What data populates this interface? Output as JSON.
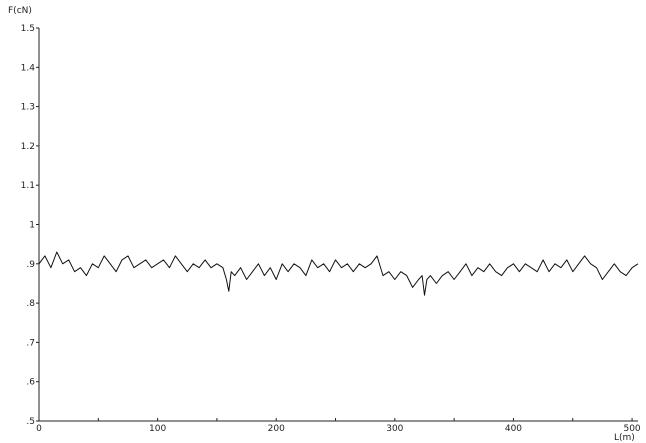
{
  "chart_data": {
    "type": "line",
    "title": "",
    "ylabel": "F(cN)",
    "xlabel": "L(m)",
    "xlim": [
      0,
      505
    ],
    "ylim": [
      0.5,
      1.5
    ],
    "grid": false,
    "xticks": [
      {
        "value": 0,
        "label": "0"
      },
      {
        "value": 50,
        "label": ""
      },
      {
        "value": 100,
        "label": "100"
      },
      {
        "value": 150,
        "label": ""
      },
      {
        "value": 200,
        "label": "200"
      },
      {
        "value": 250,
        "label": ""
      },
      {
        "value": 300,
        "label": "300"
      },
      {
        "value": 350,
        "label": ""
      },
      {
        "value": 400,
        "label": "400"
      },
      {
        "value": 450,
        "label": ""
      },
      {
        "value": 500,
        "label": "500"
      }
    ],
    "yticks": [
      {
        "value": 0.5,
        "label": ".5"
      },
      {
        "value": 0.6,
        "label": ".6"
      },
      {
        "value": 0.7,
        "label": ".7"
      },
      {
        "value": 0.8,
        "label": ".8"
      },
      {
        "value": 0.9,
        "label": ".9"
      },
      {
        "value": 1.0,
        "label": "1"
      },
      {
        "value": 1.1,
        "label": "1.1"
      },
      {
        "value": 1.2,
        "label": "1.2"
      },
      {
        "value": 1.3,
        "label": "1.3"
      },
      {
        "value": 1.4,
        "label": "1.4"
      },
      {
        "value": 1.5,
        "label": "1.5"
      }
    ],
    "series": [
      {
        "color": "#111111",
        "x": [
          0,
          5,
          10,
          15,
          20,
          25,
          30,
          35,
          40,
          45,
          50,
          55,
          60,
          65,
          70,
          75,
          80,
          85,
          90,
          95,
          100,
          105,
          110,
          115,
          120,
          125,
          130,
          135,
          140,
          145,
          150,
          155,
          158,
          160,
          162,
          165,
          170,
          175,
          180,
          185,
          190,
          195,
          200,
          205,
          210,
          215,
          220,
          225,
          230,
          235,
          240,
          245,
          250,
          255,
          260,
          265,
          270,
          275,
          280,
          285,
          290,
          295,
          300,
          305,
          310,
          315,
          320,
          323,
          325,
          327,
          330,
          335,
          340,
          345,
          350,
          355,
          360,
          365,
          370,
          375,
          380,
          385,
          390,
          395,
          400,
          405,
          410,
          415,
          420,
          425,
          430,
          435,
          440,
          445,
          450,
          455,
          460,
          465,
          470,
          475,
          480,
          485,
          490,
          495,
          500,
          505
        ],
        "y": [
          0.9,
          0.92,
          0.89,
          0.93,
          0.9,
          0.91,
          0.88,
          0.89,
          0.87,
          0.9,
          0.89,
          0.92,
          0.9,
          0.88,
          0.91,
          0.92,
          0.89,
          0.9,
          0.91,
          0.89,
          0.9,
          0.91,
          0.89,
          0.92,
          0.9,
          0.88,
          0.9,
          0.89,
          0.91,
          0.89,
          0.9,
          0.89,
          0.86,
          0.83,
          0.88,
          0.87,
          0.89,
          0.86,
          0.88,
          0.9,
          0.87,
          0.89,
          0.86,
          0.9,
          0.88,
          0.9,
          0.89,
          0.87,
          0.91,
          0.89,
          0.9,
          0.88,
          0.91,
          0.89,
          0.9,
          0.88,
          0.9,
          0.89,
          0.9,
          0.92,
          0.87,
          0.88,
          0.86,
          0.88,
          0.87,
          0.84,
          0.86,
          0.87,
          0.82,
          0.86,
          0.87,
          0.85,
          0.87,
          0.88,
          0.86,
          0.88,
          0.9,
          0.87,
          0.89,
          0.88,
          0.9,
          0.88,
          0.87,
          0.89,
          0.9,
          0.88,
          0.9,
          0.89,
          0.88,
          0.91,
          0.88,
          0.9,
          0.89,
          0.91,
          0.88,
          0.9,
          0.92,
          0.9,
          0.89,
          0.86,
          0.88,
          0.9,
          0.88,
          0.87,
          0.89,
          0.9
        ]
      }
    ]
  }
}
